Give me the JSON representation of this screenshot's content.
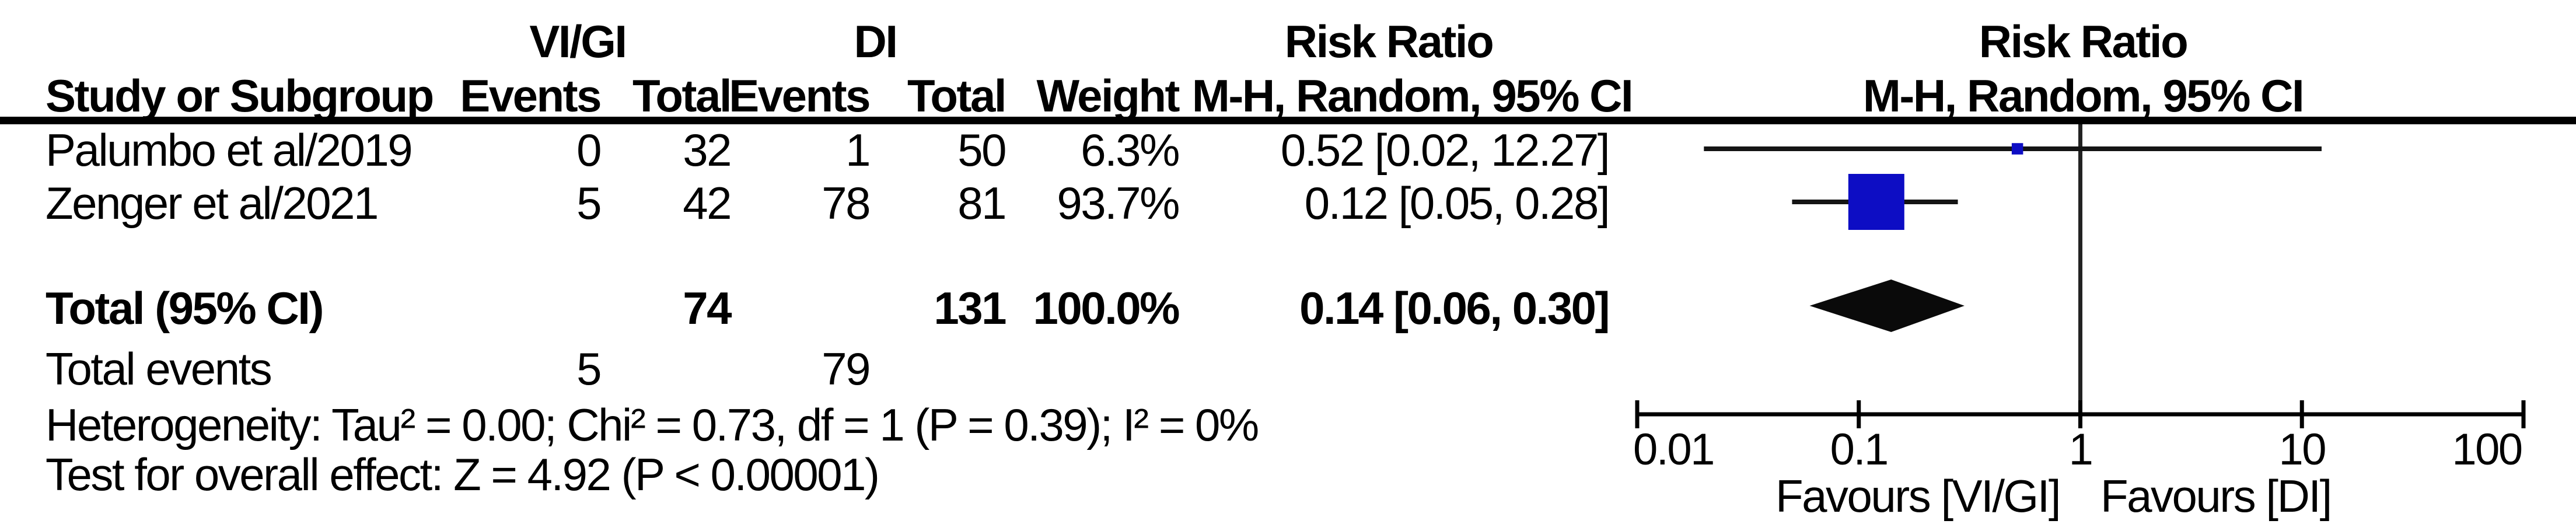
{
  "table": {
    "headers": {
      "group1": "VI/GI",
      "group2": "DI",
      "study": "Study or Subgroup",
      "events1": "Events",
      "total1": "Total",
      "events2": "Events",
      "total2": "Total",
      "weight": "Weight",
      "rr_col_title": "Risk Ratio",
      "rr_col_sub": "M-H, Random, 95% CI",
      "rr_plot_title": "Risk Ratio",
      "rr_plot_sub": "M-H, Random, 95% CI"
    },
    "studies": [
      {
        "name": "Palumbo et al/2019",
        "e1": "0",
        "t1": "32",
        "e2": "1",
        "t2": "50",
        "weight": "6.3%",
        "rr": "0.52 [0.02, 12.27]"
      },
      {
        "name": "Zenger et al/2021",
        "e1": "5",
        "t1": "42",
        "e2": "78",
        "t2": "81",
        "weight": "93.7%",
        "rr": "0.12 [0.05, 0.28]"
      }
    ],
    "total_row": {
      "label": "Total (95% CI)",
      "t1": "74",
      "t2": "131",
      "weight": "100.0%",
      "rr": "0.14 [0.06, 0.30]"
    },
    "total_events": {
      "label": "Total events",
      "e1": "5",
      "e2": "79"
    },
    "heterogeneity": "Heterogeneity: Tau² = 0.00; Chi² = 0.73, df = 1 (P = 0.39); I² = 0%",
    "overall_effect": "Test for overall effect: Z = 4.92 (P < 0.00001)"
  },
  "chart_data": {
    "type": "forest",
    "x_scale": "log10",
    "xlim": [
      0.01,
      100
    ],
    "ref_line": 1,
    "axis_ticks": [
      0.01,
      0.1,
      1,
      10,
      100
    ],
    "axis_tick_labels": [
      "0.01",
      "0.1",
      "1",
      "10",
      "100"
    ],
    "studies": [
      {
        "name": "Palumbo et al/2019",
        "rr": 0.52,
        "ci_low": 0.02,
        "ci_high": 12.27,
        "weight_pct": 6.3
      },
      {
        "name": "Zenger et al/2021",
        "rr": 0.12,
        "ci_low": 0.05,
        "ci_high": 0.28,
        "weight_pct": 93.7
      }
    ],
    "total": {
      "rr": 0.14,
      "ci_low": 0.06,
      "ci_high": 0.3,
      "shape": "diamond"
    },
    "favours_left": "Favours [VI/GI]",
    "favours_right": "Favours [DI]"
  },
  "colors": {
    "background": "#ffffff",
    "text": "#000000",
    "marker_blue": "#0d0dc4",
    "ci_line": "#141414",
    "axis_line": "#000000",
    "ref_line": "#222222",
    "diamond": "#0a0a0a"
  }
}
